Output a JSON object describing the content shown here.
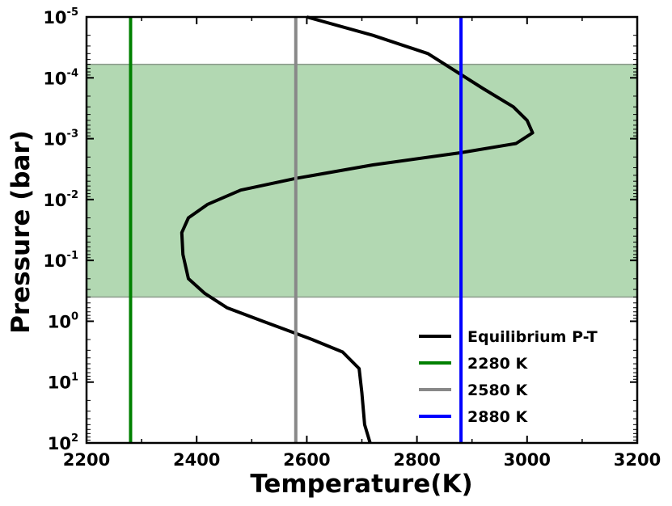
{
  "chart_data": {
    "type": "line",
    "xlabel": "Temperature(K)",
    "ylabel": "Pressure (bar)",
    "xlim": [
      2200,
      3200
    ],
    "ylim": [
      1e-05,
      100
    ],
    "yscale": "log",
    "y_inverted": true,
    "xticks": [
      "2200",
      "2400",
      "2600",
      "2800",
      "3000",
      "3200"
    ],
    "yticks": [
      {
        "base": "10",
        "exp": "-5",
        "value": 1e-05
      },
      {
        "base": "10",
        "exp": "-4",
        "value": 0.0001
      },
      {
        "base": "10",
        "exp": "-3",
        "value": 0.001
      },
      {
        "base": "10",
        "exp": "-2",
        "value": 0.01
      },
      {
        "base": "10",
        "exp": "-1",
        "value": 0.1
      },
      {
        "base": "10",
        "exp": "0",
        "value": 1
      },
      {
        "base": "10",
        "exp": "1",
        "value": 10
      },
      {
        "base": "10",
        "exp": "2",
        "value": 100
      }
    ],
    "shaded_band": {
      "p_top": 6e-05,
      "p_bottom": 0.4,
      "color": "#b2d8b2"
    },
    "series": [
      {
        "name": "Equilibrium P-T",
        "color": "#000000",
        "kind": "curve",
        "points": [
          [
            2600,
            1e-05
          ],
          [
            2720,
            2e-05
          ],
          [
            2820,
            4e-05
          ],
          [
            2920,
            0.00015
          ],
          [
            2975,
            0.0003
          ],
          [
            3000,
            0.0005
          ],
          [
            3010,
            0.0008
          ],
          [
            2980,
            0.0012
          ],
          [
            2880,
            0.0017
          ],
          [
            2720,
            0.0027
          ],
          [
            2580,
            0.0045
          ],
          [
            2480,
            0.007
          ],
          [
            2420,
            0.012
          ],
          [
            2385,
            0.02
          ],
          [
            2373,
            0.035
          ],
          [
            2375,
            0.08
          ],
          [
            2385,
            0.2
          ],
          [
            2415,
            0.35
          ],
          [
            2455,
            0.6
          ],
          [
            2520,
            1.0
          ],
          [
            2610,
            2.0
          ],
          [
            2665,
            3.2
          ],
          [
            2695,
            6
          ],
          [
            2700,
            15
          ],
          [
            2705,
            50
          ],
          [
            2715,
            100
          ]
        ]
      },
      {
        "name": "2280 K",
        "color": "#008000",
        "kind": "vertical",
        "x": 2280
      },
      {
        "name": "2580 K",
        "color": "#888888",
        "kind": "vertical",
        "x": 2580
      },
      {
        "name": "2880 K",
        "color": "#0000ff",
        "kind": "vertical",
        "x": 2880
      }
    ],
    "legend": "lower-right"
  }
}
